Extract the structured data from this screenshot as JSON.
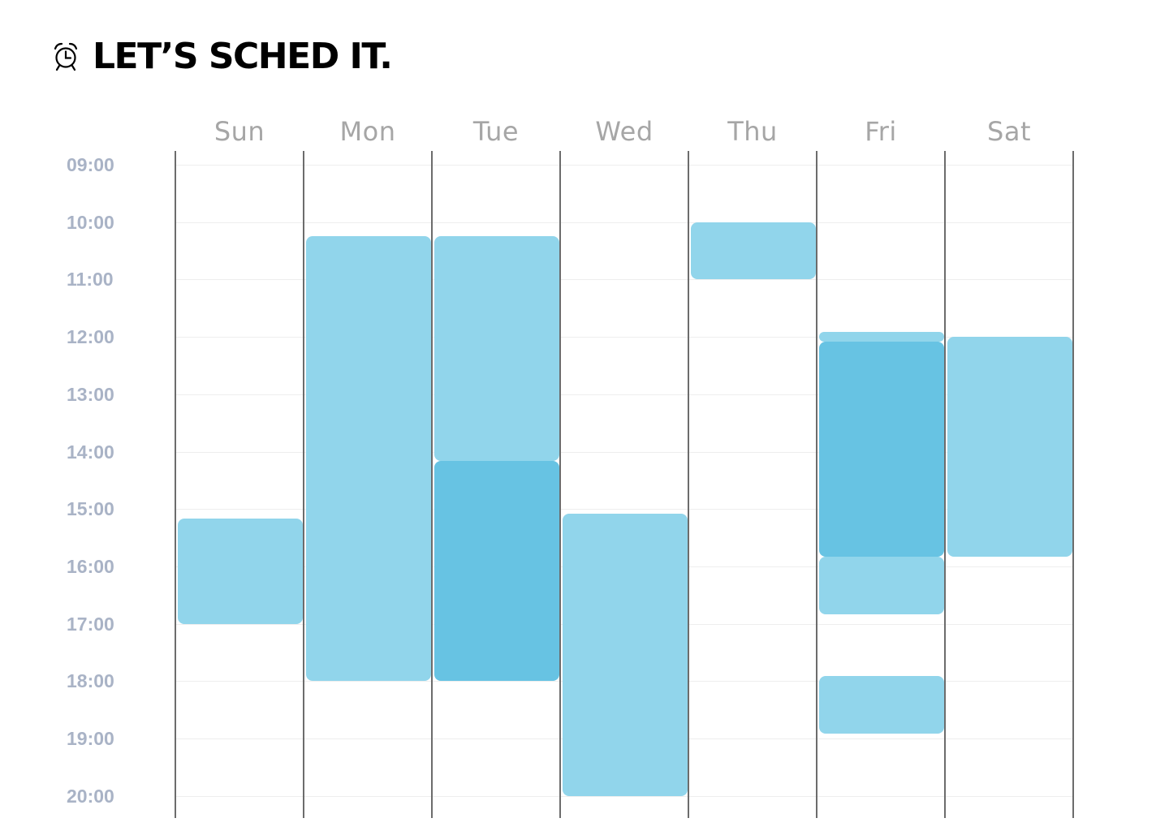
{
  "header": {
    "title": "LET’S SCHED IT.",
    "icon": "alarm-clock-icon"
  },
  "days": [
    "Sun",
    "Mon",
    "Tue",
    "Wed",
    "Thu",
    "Fri",
    "Sat"
  ],
  "times": [
    "09:00",
    "10:00",
    "11:00",
    "12:00",
    "13:00",
    "14:00",
    "15:00",
    "16:00",
    "17:00",
    "18:00",
    "19:00",
    "20:00"
  ],
  "colors": {
    "event": "#91d5eb",
    "event_overlap": "#67c3e3",
    "time_label": "#a9b3c6",
    "day_label": "#a6a6a6",
    "column_line": "#6c6c6c"
  },
  "events": [
    {
      "day": "Sun",
      "start": "15:10",
      "end": "17:00",
      "tone": "event"
    },
    {
      "day": "Mon",
      "start": "10:15",
      "end": "18:00",
      "tone": "event"
    },
    {
      "day": "Tue",
      "start": "10:15",
      "end": "14:10",
      "tone": "event"
    },
    {
      "day": "Tue",
      "start": "14:10",
      "end": "18:00",
      "tone": "event_overlap"
    },
    {
      "day": "Wed",
      "start": "15:05",
      "end": "20:00",
      "tone": "event"
    },
    {
      "day": "Thu",
      "start": "10:00",
      "end": "11:00",
      "tone": "event"
    },
    {
      "day": "Fri",
      "start": "11:55",
      "end": "12:05",
      "tone": "event"
    },
    {
      "day": "Fri",
      "start": "12:05",
      "end": "15:50",
      "tone": "event_overlap"
    },
    {
      "day": "Fri",
      "start": "15:50",
      "end": "16:50",
      "tone": "event"
    },
    {
      "day": "Fri",
      "start": "17:55",
      "end": "18:55",
      "tone": "event"
    },
    {
      "day": "Sat",
      "start": "12:00",
      "end": "15:50",
      "tone": "event"
    }
  ]
}
